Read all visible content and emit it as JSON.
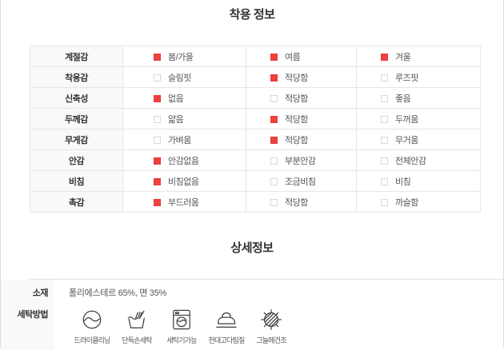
{
  "sections": {
    "wear_info_title": "착용 정보",
    "detail_title": "상세정보"
  },
  "wear_table": {
    "rows": [
      {
        "label": "계절감",
        "options": [
          {
            "text": "봄/가을",
            "checked": true
          },
          {
            "text": "여름",
            "checked": true
          },
          {
            "text": "겨울",
            "checked": true
          }
        ]
      },
      {
        "label": "착용감",
        "options": [
          {
            "text": "슬림핏",
            "checked": false
          },
          {
            "text": "적당함",
            "checked": true
          },
          {
            "text": "루즈핏",
            "checked": false
          }
        ]
      },
      {
        "label": "신축성",
        "options": [
          {
            "text": "없음",
            "checked": true
          },
          {
            "text": "적당함",
            "checked": false
          },
          {
            "text": "좋음",
            "checked": false
          }
        ]
      },
      {
        "label": "두께감",
        "options": [
          {
            "text": "얇음",
            "checked": false
          },
          {
            "text": "적당함",
            "checked": true
          },
          {
            "text": "두꺼움",
            "checked": false
          }
        ]
      },
      {
        "label": "무게감",
        "options": [
          {
            "text": "가벼움",
            "checked": false
          },
          {
            "text": "적당함",
            "checked": true
          },
          {
            "text": "무거움",
            "checked": false
          }
        ]
      },
      {
        "label": "안감",
        "options": [
          {
            "text": "안감없음",
            "checked": true
          },
          {
            "text": "부분안감",
            "checked": false
          },
          {
            "text": "전체안감",
            "checked": false
          }
        ]
      },
      {
        "label": "비침",
        "options": [
          {
            "text": "비침없음",
            "checked": true
          },
          {
            "text": "조금비침",
            "checked": false
          },
          {
            "text": "비침",
            "checked": false
          }
        ]
      },
      {
        "label": "촉감",
        "options": [
          {
            "text": "부드러움",
            "checked": true
          },
          {
            "text": "적당함",
            "checked": false
          },
          {
            "text": "까슬함",
            "checked": false
          }
        ]
      }
    ]
  },
  "details": {
    "material_label": "소재",
    "material_value": "폴리에스테르 65%, 면 35%",
    "wash_label": "세탁방법",
    "wash_methods": [
      {
        "icon": "dry-cleaning-icon",
        "label": "드라이클리닝"
      },
      {
        "icon": "hand-wash-icon",
        "label": "단독손세탁"
      },
      {
        "icon": "machine-wash-icon",
        "label": "세탁기가능"
      },
      {
        "icon": "iron-with-cloth-icon",
        "label": "천대고다림질"
      },
      {
        "icon": "shade-dry-icon",
        "label": "그늘에건조"
      }
    ]
  },
  "colors": {
    "checked_box": "#f0413e",
    "table_border": "#e6e6e6",
    "label_bg": "#f9f9f9"
  }
}
